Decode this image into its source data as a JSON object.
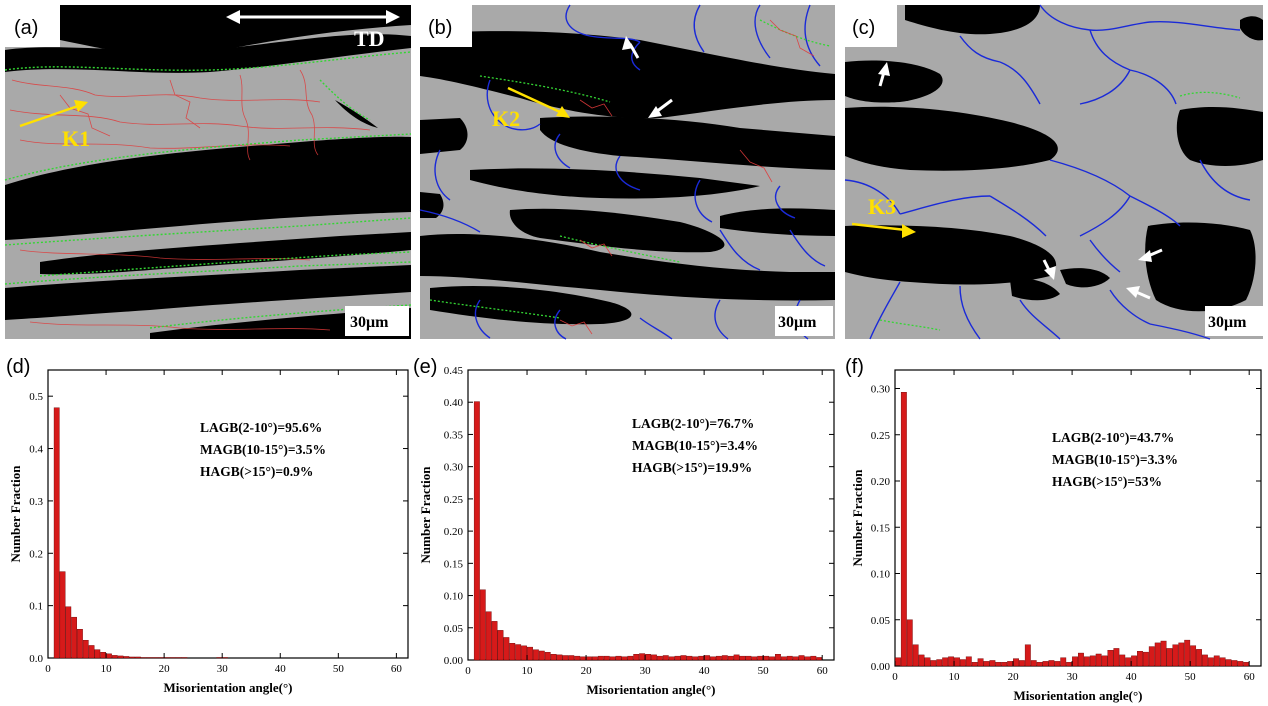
{
  "figure": {
    "micrographs": [
      {
        "panel_label": "(a)",
        "scale_bar": "30μm",
        "direction_label": "TD",
        "markers": [
          "K1"
        ]
      },
      {
        "panel_label": "(b)",
        "scale_bar": "30μm",
        "markers": [
          "K2"
        ]
      },
      {
        "panel_label": "(c)",
        "scale_bar": "30μm",
        "markers": [
          "K3"
        ]
      }
    ],
    "colors": {
      "bar_fill": "#d61a1a",
      "bar_stroke": "#6a0000",
      "lagb_line": "#e03a3a",
      "magb_line": "#33d633",
      "hagb_line": "#1a2ad8",
      "marker_arrow": "#ffe000",
      "marker_text": "#ffe000",
      "white_arrow": "#ffffff",
      "matrix_gray": "#a9a9a9",
      "dark_phase": "#000000"
    }
  },
  "chart_data": [
    {
      "panel_label": "(d)",
      "type": "bar",
      "xlabel": "Misorientation angle(°)",
      "ylabel": "Number Fraction",
      "xlim": [
        0,
        62
      ],
      "ylim": [
        0,
        0.55
      ],
      "xticks": [
        0,
        10,
        20,
        30,
        40,
        50,
        60
      ],
      "yticks": [
        "0.0",
        "0.1",
        "0.2",
        "0.3",
        "0.4",
        "0.5"
      ],
      "annotations": [
        "LAGB(2-10°)=95.6%",
        "MAGB(10-15°)=3.5%",
        "HAGB(>15°)=0.9%"
      ],
      "x": [
        1.5,
        2.5,
        3.5,
        4.5,
        5.5,
        6.5,
        7.5,
        8.5,
        9.5,
        10.5,
        11.5,
        12.5,
        13.5,
        14.5,
        15.5,
        16.5,
        17.5,
        18.5,
        19.5,
        20.5,
        21.5,
        22.5,
        23.5,
        24.5,
        25.5,
        26.5,
        27.5,
        28.5,
        29.5,
        30.5,
        31.5,
        32.5,
        33.5,
        34.5,
        35.5,
        36.5,
        37.5,
        38.5,
        39.5,
        40.5,
        41.5,
        42.5,
        43.5,
        44.5,
        45.5,
        46.5,
        47.5,
        48.5,
        49.5,
        50.5,
        51.5,
        52.5,
        53.5,
        54.5,
        55.5,
        56.5,
        57.5,
        58.5,
        59.5
      ],
      "values": [
        0.478,
        0.165,
        0.098,
        0.078,
        0.055,
        0.034,
        0.024,
        0.016,
        0.011,
        0.008,
        0.005,
        0.004,
        0.003,
        0.002,
        0.002,
        0.001,
        0.001,
        0.001,
        0.001,
        0.001,
        0.001,
        0.001,
        0.001,
        0.0,
        0.0,
        0.0,
        0.0,
        0.0,
        0.001,
        0.001,
        0.0,
        0.0,
        0.0,
        0.0,
        0.0,
        0.0,
        0.0,
        0.0,
        0.0,
        0.0,
        0.0,
        0.0,
        0.0,
        0.0,
        0.0,
        0.0,
        0.0,
        0.0,
        0.0,
        0.0,
        0.0,
        0.0,
        0.0,
        0.0,
        0.0,
        0.0,
        0.0,
        0.0,
        0.0
      ]
    },
    {
      "panel_label": "(e)",
      "type": "bar",
      "xlabel": "Misorientation angle(°)",
      "ylabel": "Number Fraction",
      "xlim": [
        0,
        62
      ],
      "ylim": [
        0,
        0.45
      ],
      "xticks": [
        0,
        10,
        20,
        30,
        40,
        50,
        60
      ],
      "yticks": [
        "0.00",
        "0.05",
        "0.10",
        "0.15",
        "0.20",
        "0.25",
        "0.30",
        "0.35",
        "0.40",
        "0.45"
      ],
      "annotations": [
        "LAGB(2-10°)=76.7%",
        "MAGB(10-15°)=3.4%",
        "HAGB(>15°)=19.9%"
      ],
      "x": [
        1.5,
        2.5,
        3.5,
        4.5,
        5.5,
        6.5,
        7.5,
        8.5,
        9.5,
        10.5,
        11.5,
        12.5,
        13.5,
        14.5,
        15.5,
        16.5,
        17.5,
        18.5,
        19.5,
        20.5,
        21.5,
        22.5,
        23.5,
        24.5,
        25.5,
        26.5,
        27.5,
        28.5,
        29.5,
        30.5,
        31.5,
        32.5,
        33.5,
        34.5,
        35.5,
        36.5,
        37.5,
        38.5,
        39.5,
        40.5,
        41.5,
        42.5,
        43.5,
        44.5,
        45.5,
        46.5,
        47.5,
        48.5,
        49.5,
        50.5,
        51.5,
        52.5,
        53.5,
        54.5,
        55.5,
        56.5,
        57.5,
        58.5,
        59.5
      ],
      "values": [
        0.401,
        0.109,
        0.075,
        0.06,
        0.046,
        0.035,
        0.026,
        0.024,
        0.022,
        0.02,
        0.016,
        0.014,
        0.012,
        0.009,
        0.008,
        0.007,
        0.007,
        0.006,
        0.005,
        0.005,
        0.005,
        0.006,
        0.006,
        0.005,
        0.006,
        0.005,
        0.006,
        0.009,
        0.01,
        0.009,
        0.008,
        0.006,
        0.007,
        0.005,
        0.006,
        0.007,
        0.006,
        0.005,
        0.006,
        0.007,
        0.005,
        0.006,
        0.007,
        0.006,
        0.008,
        0.006,
        0.006,
        0.005,
        0.006,
        0.006,
        0.005,
        0.009,
        0.005,
        0.006,
        0.005,
        0.007,
        0.005,
        0.006,
        0.004
      ]
    },
    {
      "panel_label": "(f)",
      "type": "bar",
      "xlabel": "Misorientation angle(°)",
      "ylabel": "Number Fraction",
      "xlim": [
        0,
        62
      ],
      "ylim": [
        0,
        0.32
      ],
      "xticks": [
        0,
        10,
        20,
        30,
        40,
        50,
        60
      ],
      "yticks": [
        "0.00",
        "0.05",
        "0.10",
        "0.15",
        "0.20",
        "0.25",
        "0.30"
      ],
      "annotations": [
        "LAGB(2-10°)=43.7%",
        "MAGB(10-15°)=3.3%",
        "HAGB(>15°)=53%"
      ],
      "x": [
        0.5,
        1.5,
        2.5,
        3.5,
        4.5,
        5.5,
        6.5,
        7.5,
        8.5,
        9.5,
        10.5,
        11.5,
        12.5,
        13.5,
        14.5,
        15.5,
        16.5,
        17.5,
        18.5,
        19.5,
        20.5,
        21.5,
        22.5,
        23.5,
        24.5,
        25.5,
        26.5,
        27.5,
        28.5,
        29.5,
        30.5,
        31.5,
        32.5,
        33.5,
        34.5,
        35.5,
        36.5,
        37.5,
        38.5,
        39.5,
        40.5,
        41.5,
        42.5,
        43.5,
        44.5,
        45.5,
        46.5,
        47.5,
        48.5,
        49.5,
        50.5,
        51.5,
        52.5,
        53.5,
        54.5,
        55.5,
        56.5,
        57.5,
        58.5,
        59.5
      ],
      "values": [
        0.009,
        0.296,
        0.05,
        0.023,
        0.012,
        0.009,
        0.006,
        0.007,
        0.009,
        0.01,
        0.009,
        0.007,
        0.01,
        0.004,
        0.008,
        0.005,
        0.006,
        0.004,
        0.004,
        0.005,
        0.008,
        0.006,
        0.023,
        0.006,
        0.004,
        0.005,
        0.006,
        0.005,
        0.009,
        0.004,
        0.01,
        0.014,
        0.01,
        0.011,
        0.013,
        0.011,
        0.017,
        0.019,
        0.012,
        0.009,
        0.011,
        0.016,
        0.015,
        0.021,
        0.025,
        0.027,
        0.019,
        0.023,
        0.025,
        0.028,
        0.022,
        0.018,
        0.012,
        0.009,
        0.011,
        0.009,
        0.007,
        0.006,
        0.005,
        0.004
      ]
    }
  ]
}
